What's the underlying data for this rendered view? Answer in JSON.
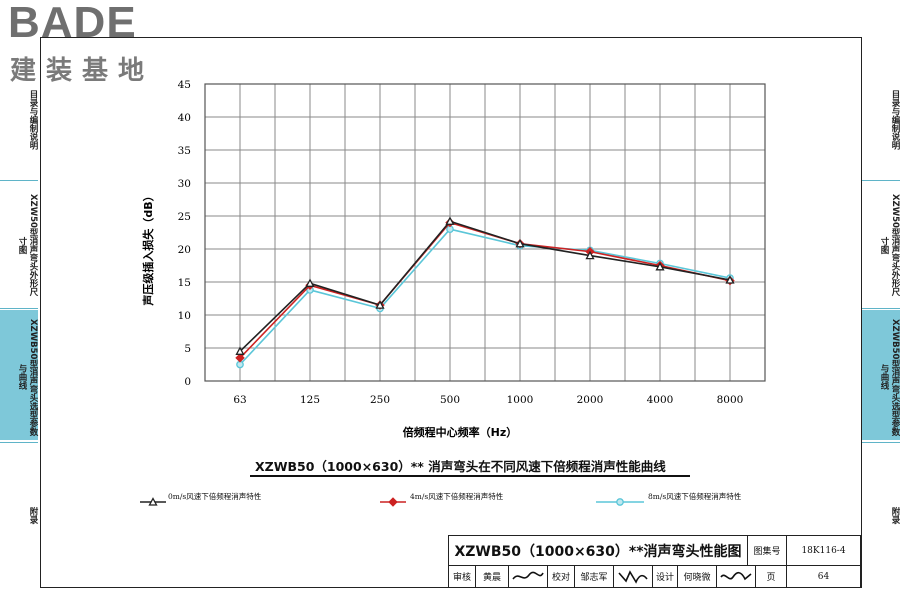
{
  "logo": {
    "brand": "BADE",
    "sub": "建装基地"
  },
  "sidebar_left": [
    {
      "label": "目录与编制说明",
      "selected": false
    },
    {
      "label": "XZW50型消声弯头外形尺寸图",
      "selected": false
    },
    {
      "label": "XZWB50型消声弯头选型参数与曲线",
      "selected": true
    },
    {
      "label": "附录",
      "selected": false
    }
  ],
  "sidebar_right": [
    {
      "label": "目录与编制说明",
      "selected": false
    },
    {
      "label": "XZW50型消声弯头外形尺寸图",
      "selected": false
    },
    {
      "label": "XZWB50型消声弯头选型参数与曲线",
      "selected": true
    },
    {
      "label": "附录",
      "selected": false
    }
  ],
  "chart_data": {
    "type": "line",
    "categories": [
      "63",
      "125",
      "250",
      "500",
      "1000",
      "2000",
      "4000",
      "8000"
    ],
    "ylabel": "声压级插入损失（dB）",
    "xlabel": "倍频程中心频率（Hz）",
    "ylim": [
      0,
      45
    ],
    "yticks": [
      0,
      5,
      10,
      15,
      20,
      25,
      30,
      35,
      40,
      45
    ],
    "grid": true,
    "subtitle": "XZWB50（1000×630）** 消声弯头在不同风速下倍频程消声性能曲线",
    "series": [
      {
        "name": "0m/s风速下倍频程消声特性",
        "color": "#222222",
        "marker": "triangle",
        "values": [
          4.5,
          14.8,
          11.5,
          24.2,
          20.8,
          19.0,
          17.3,
          15.3
        ]
      },
      {
        "name": "4m/s风速下倍频程消声特性",
        "color": "#cc2222",
        "marker": "diamond",
        "values": [
          3.5,
          14.5,
          11.5,
          24.0,
          20.8,
          19.6,
          17.5,
          15.2
        ]
      },
      {
        "name": "8m/s风速下倍频程消声特性",
        "color": "#5bc6d8",
        "marker": "circle",
        "values": [
          2.5,
          13.8,
          11.0,
          23.0,
          20.5,
          19.8,
          17.8,
          15.6
        ]
      }
    ]
  },
  "title_block": {
    "title": "XZWB50（1000×630）**消声弯头性能图",
    "atlas_label": "图集号",
    "atlas_no": "18K116-4",
    "review_label": "审核",
    "reviewer": "黄晨",
    "check_label": "校对",
    "checker": "邹志军",
    "design_label": "设计",
    "designer": "何晓微",
    "page_label": "页",
    "page_no": "64"
  }
}
